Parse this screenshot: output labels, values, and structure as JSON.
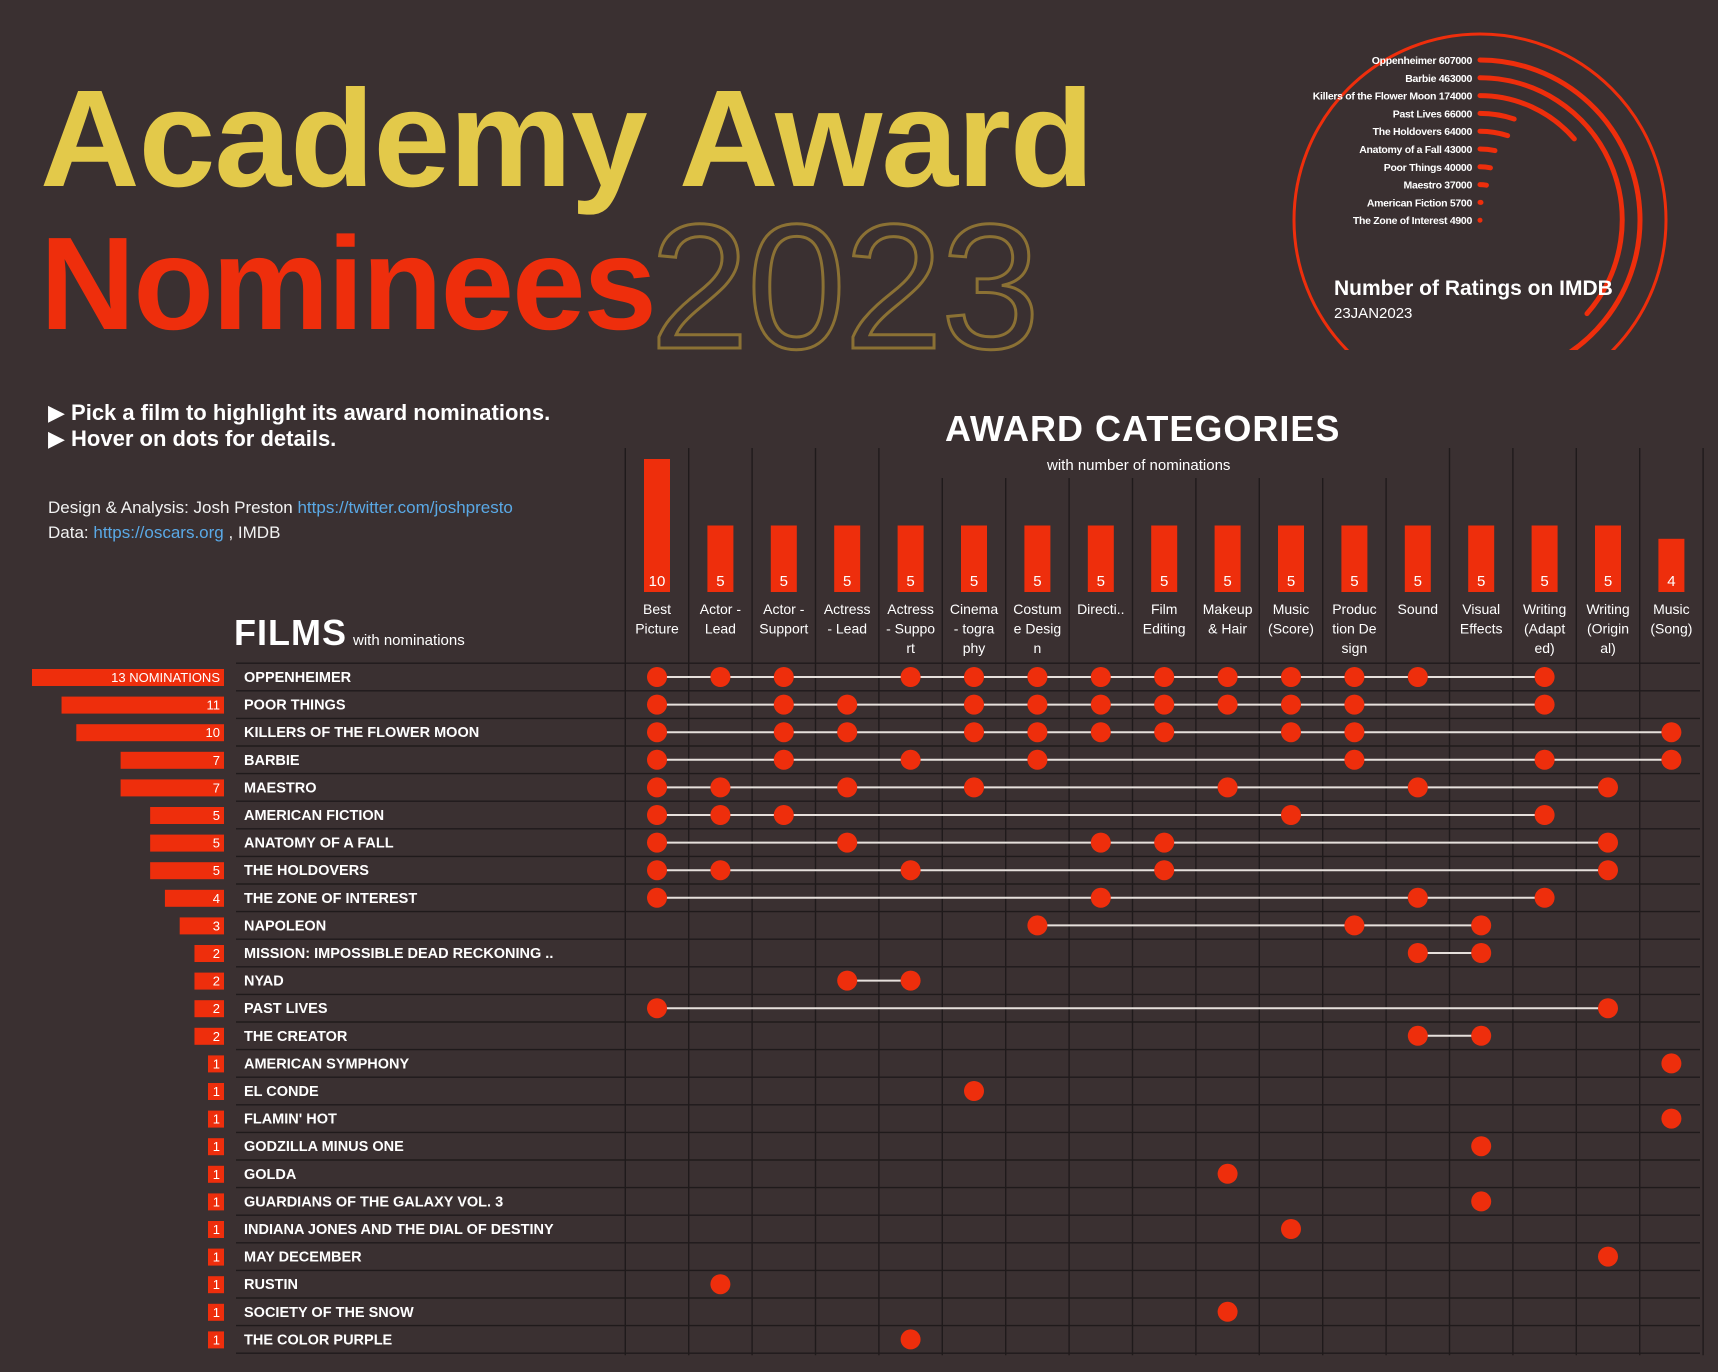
{
  "title": {
    "line1": "Academy Award",
    "line2": "Nominees",
    "year": "2023"
  },
  "instructions": [
    "▶ Pick a film to highlight its award nominations.",
    "▶ Hover on dots for details."
  ],
  "credits": {
    "design_label": "Design & Analysis: Josh Preston ",
    "design_link": "https://twitter.com/joshpresto",
    "data_label": "Data: ",
    "data_link": "https://oscars.org",
    "data_suffix": " , IMDB"
  },
  "films_header": {
    "title": "FILMS",
    "subtitle": "with nominations"
  },
  "awards_header": {
    "title": "AWARD CATEGORIES",
    "subtitle": "with number of nominations"
  },
  "ratings": {
    "title": "Number of Ratings on IMDB",
    "date": "23JAN2023",
    "items": [
      {
        "film": "Oppenheimer",
        "value": 607000
      },
      {
        "film": "Barbie",
        "value": 463000
      },
      {
        "film": "Killers of the Flower Moon",
        "value": 174000
      },
      {
        "film": "Past Lives",
        "value": 66000
      },
      {
        "film": "The Holdovers",
        "value": 64000
      },
      {
        "film": "Anatomy of a Fall",
        "value": 43000
      },
      {
        "film": "Poor Things",
        "value": 40000
      },
      {
        "film": "Maestro",
        "value": 37000
      },
      {
        "film": "American Fiction",
        "value": 5700
      },
      {
        "film": "The Zone of Interest",
        "value": 4900
      }
    ]
  },
  "colors": {
    "accent": "#ee2e0c",
    "gold": "#e3c94a",
    "outline": "#8b7134",
    "background": "#3a3031"
  },
  "chart_data": {
    "type": "scatter",
    "categories": [
      {
        "label": [
          "Best",
          "Picture"
        ],
        "count": 10
      },
      {
        "label": [
          "Actor -",
          "Lead"
        ],
        "count": 5
      },
      {
        "label": [
          "Actor -",
          "Support"
        ],
        "count": 5
      },
      {
        "label": [
          "Actress",
          "- Lead"
        ],
        "count": 5
      },
      {
        "label": [
          "Actress",
          "- Suppo",
          "rt"
        ],
        "count": 5
      },
      {
        "label": [
          "Cinema",
          "- togra",
          "phy"
        ],
        "count": 5
      },
      {
        "label": [
          "Costum",
          "e Desig",
          "n"
        ],
        "count": 5
      },
      {
        "label": [
          "Directi.."
        ],
        "count": 5
      },
      {
        "label": [
          "Film",
          "Editing"
        ],
        "count": 5
      },
      {
        "label": [
          "Makeup",
          "& Hair"
        ],
        "count": 5
      },
      {
        "label": [
          "Music",
          "(Score)"
        ],
        "count": 5
      },
      {
        "label": [
          "Produc",
          "tion De",
          "sign"
        ],
        "count": 5
      },
      {
        "label": [
          "Sound"
        ],
        "count": 5
      },
      {
        "label": [
          "Visual",
          "Effects"
        ],
        "count": 5
      },
      {
        "label": [
          "Writing",
          "(Adapt",
          "ed)"
        ],
        "count": 5
      },
      {
        "label": [
          "Writing",
          "(Origin",
          "al)"
        ],
        "count": 5
      },
      {
        "label": [
          "Music",
          "(Song)"
        ],
        "count": 4
      }
    ],
    "films": [
      {
        "name": "OPPENHEIMER",
        "count": 13,
        "count_label": "13 NOMINATIONS",
        "noms": [
          0,
          1,
          2,
          4,
          5,
          6,
          7,
          8,
          9,
          10,
          11,
          12,
          14
        ]
      },
      {
        "name": "POOR THINGS",
        "count": 11,
        "count_label": "11",
        "noms": [
          0,
          2,
          3,
          5,
          6,
          7,
          8,
          9,
          10,
          11,
          14
        ]
      },
      {
        "name": "KILLERS OF THE FLOWER MOON",
        "count": 10,
        "count_label": "10",
        "noms": [
          0,
          2,
          3,
          5,
          6,
          7,
          8,
          10,
          11,
          16
        ]
      },
      {
        "name": "BARBIE",
        "count": 7,
        "count_label": "7",
        "noms": [
          0,
          2,
          4,
          6,
          11,
          14,
          16
        ]
      },
      {
        "name": "MAESTRO",
        "count": 7,
        "count_label": "7",
        "noms": [
          0,
          1,
          3,
          5,
          9,
          12,
          15
        ]
      },
      {
        "name": "AMERICAN FICTION",
        "count": 5,
        "count_label": "5",
        "noms": [
          0,
          1,
          2,
          10,
          14
        ]
      },
      {
        "name": "ANATOMY OF A FALL",
        "count": 5,
        "count_label": "5",
        "noms": [
          0,
          3,
          7,
          8,
          15
        ]
      },
      {
        "name": "THE HOLDOVERS",
        "count": 5,
        "count_label": "5",
        "noms": [
          0,
          1,
          4,
          8,
          15
        ]
      },
      {
        "name": "THE ZONE OF INTEREST",
        "count": 4,
        "count_label": "4",
        "noms": [
          0,
          7,
          12,
          14
        ]
      },
      {
        "name": "NAPOLEON",
        "count": 3,
        "count_label": "3",
        "noms": [
          6,
          11,
          13
        ]
      },
      {
        "name": "MISSION: IMPOSSIBLE DEAD RECKONING ..",
        "count": 2,
        "count_label": "2",
        "noms": [
          12,
          13
        ]
      },
      {
        "name": "NYAD",
        "count": 2,
        "count_label": "2",
        "noms": [
          3,
          4
        ]
      },
      {
        "name": "PAST LIVES",
        "count": 2,
        "count_label": "2",
        "noms": [
          0,
          15
        ]
      },
      {
        "name": "THE CREATOR",
        "count": 2,
        "count_label": "2",
        "noms": [
          12,
          13
        ]
      },
      {
        "name": "AMERICAN SYMPHONY",
        "count": 1,
        "count_label": "1",
        "noms": [
          16
        ]
      },
      {
        "name": "EL CONDE",
        "count": 1,
        "count_label": "1",
        "noms": [
          5
        ]
      },
      {
        "name": "FLAMIN' HOT",
        "count": 1,
        "count_label": "1",
        "noms": [
          16
        ]
      },
      {
        "name": "GODZILLA MINUS ONE",
        "count": 1,
        "count_label": "1",
        "noms": [
          13
        ]
      },
      {
        "name": "GOLDA",
        "count": 1,
        "count_label": "1",
        "noms": [
          9
        ]
      },
      {
        "name": "GUARDIANS OF THE GALAXY VOL. 3",
        "count": 1,
        "count_label": "1",
        "noms": [
          13
        ]
      },
      {
        "name": "INDIANA JONES AND THE DIAL OF DESTINY",
        "count": 1,
        "count_label": "1",
        "noms": [
          10
        ]
      },
      {
        "name": "MAY DECEMBER",
        "count": 1,
        "count_label": "1",
        "noms": [
          15
        ]
      },
      {
        "name": "RUSTIN",
        "count": 1,
        "count_label": "1",
        "noms": [
          1
        ]
      },
      {
        "name": "SOCIETY OF THE SNOW",
        "count": 1,
        "count_label": "1",
        "noms": [
          9
        ]
      },
      {
        "name": "THE COLOR PURPLE",
        "count": 1,
        "count_label": "1",
        "noms": [
          4
        ]
      }
    ]
  }
}
